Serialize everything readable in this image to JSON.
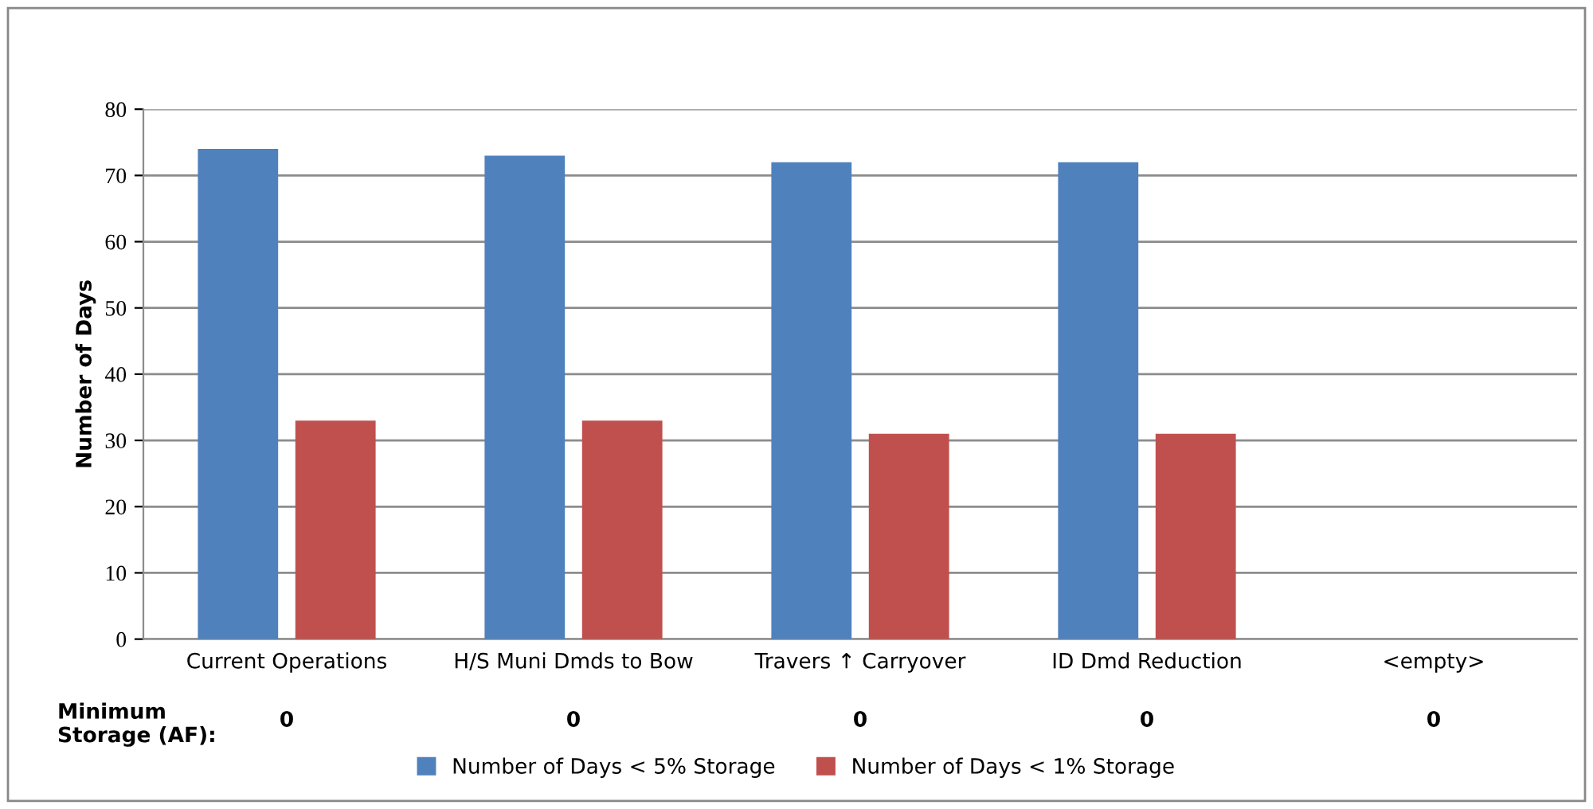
{
  "chart_data": {
    "type": "bar",
    "ylabel": "Number of Days",
    "categories": [
      "Current Operations",
      "H/S Muni Dmds to Bow",
      "Travers ↑ Carryover",
      "ID Dmd Reduction",
      "<empty>"
    ],
    "series": [
      {
        "name": "Number of Days < 5% Storage",
        "color": "#4f81bd",
        "values": [
          74,
          73,
          72,
          72,
          null
        ]
      },
      {
        "name": "Number of Days < 1% Storage",
        "color": "#c0504d",
        "values": [
          33,
          33,
          31,
          31,
          null
        ]
      }
    ],
    "ylim": [
      0,
      80
    ],
    "yticks": [
      0,
      10,
      20,
      30,
      40,
      50,
      60,
      70,
      80
    ],
    "grid": "y",
    "legend": "bottom",
    "annotations": [
      "Minimum\nStorage (AF):",
      "0",
      "0",
      "0",
      "0",
      "0"
    ]
  }
}
